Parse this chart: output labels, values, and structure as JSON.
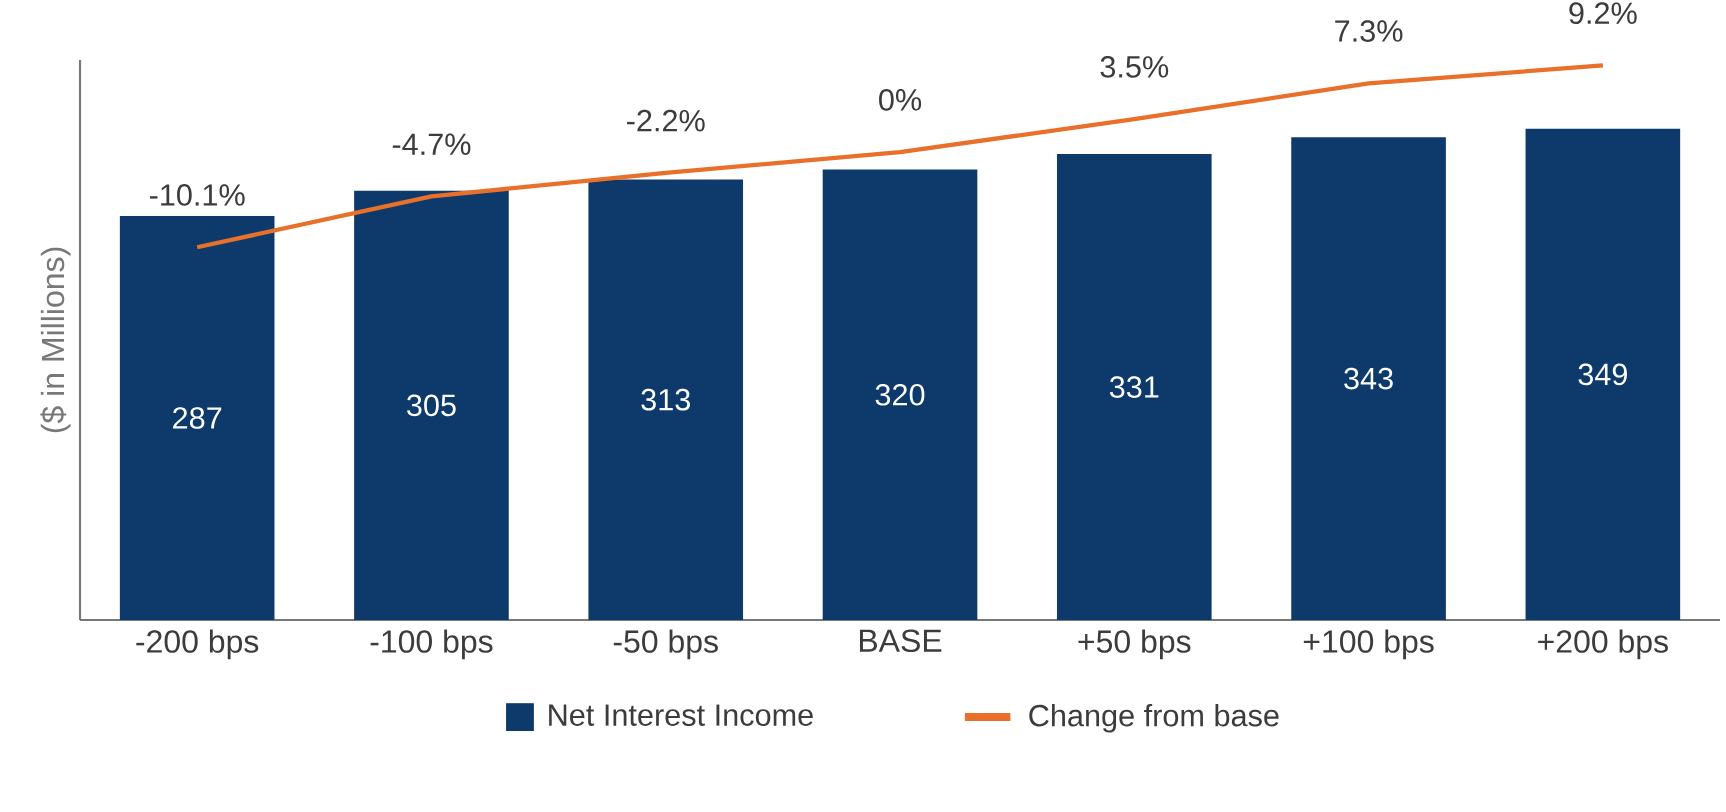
{
  "chart_data": {
    "type": "bar",
    "ylabel": "($ in Millions)",
    "categories": [
      "-200 bps",
      "-100 bps",
      "-50 bps",
      "BASE",
      "+50 bps",
      "+100 bps",
      "+200 bps"
    ],
    "series": [
      {
        "name": "Net Interest Income",
        "color": "#0d3a6b",
        "values": [
          287,
          305,
          313,
          320,
          331,
          343,
          349
        ],
        "value_labels": [
          "287",
          "305",
          "313",
          "320",
          "331",
          "343",
          "349"
        ]
      },
      {
        "name": "Change from base",
        "type": "line",
        "axis": "y2",
        "color": "#e8702a",
        "values": [
          -10.1,
          -4.7,
          -2.2,
          0,
          3.5,
          7.3,
          9.2
        ],
        "value_labels": [
          "-10.1%",
          "-4.7%",
          "-2.2%",
          "0%",
          "3.5%",
          "7.3%",
          "9.2%"
        ]
      }
    ],
    "legend": "bottom",
    "grid": false,
    "tick_labels": "x",
    "marker": "none",
    "line_style": "solid"
  }
}
